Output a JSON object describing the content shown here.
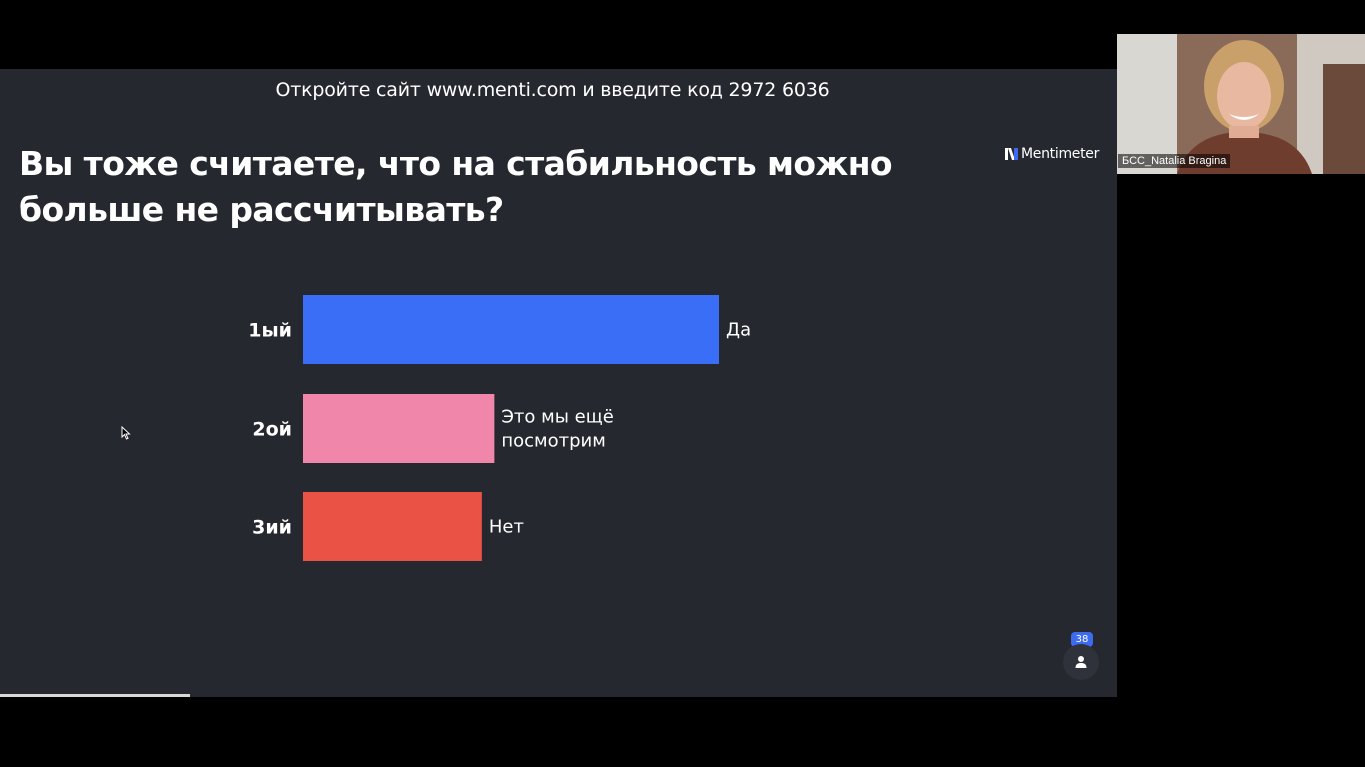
{
  "slide": {
    "join_banner": "Откройте сайт www.menti.com и введите код 2972 6036",
    "question_line1": "Вы тоже считаете, что на стабильность можно",
    "question_line2": "больше не рассчитывать?",
    "brand": "Mentimeter",
    "participants_count": "38",
    "progress": 0.17
  },
  "chart_data": {
    "type": "bar",
    "orientation": "horizontal",
    "title": "",
    "categories": [
      "1ый",
      "2ой",
      "3ий"
    ],
    "series": [
      {
        "labels": [
          "Да",
          "Это мы ещё посмотрим",
          "Нет"
        ],
        "label_lines": [
          [
            "Да"
          ],
          [
            "Это мы ещё",
            "посмотрим"
          ],
          [
            "Нет"
          ]
        ],
        "values": [
          100,
          46,
          43
        ],
        "colors": [
          "#3b6ef6",
          "#f087ab",
          "#ea5246"
        ]
      }
    ],
    "xlim": [
      0,
      100
    ],
    "grid": false,
    "legend": "none"
  },
  "video": {
    "participant_name": "БСС_Natalia Bragina"
  },
  "colors": {
    "slide_bg": "#262830",
    "screen_bg": "#000000",
    "accent": "#3d6bf0"
  }
}
